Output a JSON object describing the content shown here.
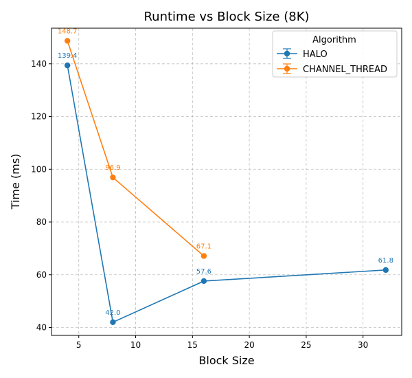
{
  "chart_data": {
    "type": "line",
    "title": "Runtime vs Block Size (8K)",
    "xlabel": "Block Size",
    "ylabel": "Time (ms)",
    "xlim": [
      2.6,
      33.4
    ],
    "ylim": [
      37.0,
      153.5
    ],
    "xticks": [
      5,
      10,
      15,
      20,
      25,
      30
    ],
    "yticks": [
      40,
      60,
      80,
      100,
      120,
      140
    ],
    "grid": true,
    "legend": {
      "title": "Algorithm",
      "position": "top-right"
    },
    "series": [
      {
        "name": "HALO",
        "color": "#1f77b4",
        "x": [
          4,
          8,
          16,
          32
        ],
        "y": [
          139.4,
          42.0,
          57.6,
          61.8
        ],
        "labels": [
          "139.4",
          "42.0",
          "57.6",
          "61.8"
        ]
      },
      {
        "name": "CHANNEL_THREAD",
        "color": "#ff7f0e",
        "x": [
          4,
          8,
          16
        ],
        "y": [
          148.7,
          96.9,
          67.1
        ],
        "labels": [
          "148.7",
          "96.9",
          "67.1"
        ]
      }
    ]
  }
}
